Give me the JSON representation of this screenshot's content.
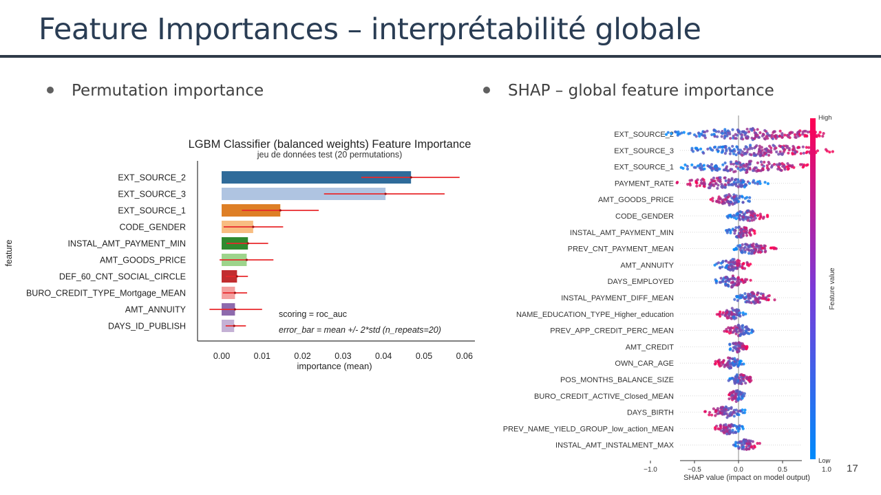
{
  "slide": {
    "title": "Feature Importances – interprétabilité globale",
    "page_number": "17",
    "bullets": [
      "Permutation importance",
      "SHAP – global feature importance"
    ]
  },
  "chart_data": [
    {
      "type": "bar",
      "orientation": "horizontal",
      "title": "LGBM Classifier (balanced weights) Feature Importance",
      "subtitle": "jeu de données test (20 permutations)",
      "xlabel": "importance (mean)",
      "ylabel": "feature",
      "xlim": [
        -0.003,
        0.061
      ],
      "xticks": [
        "0.00",
        "0.01",
        "0.02",
        "0.03",
        "0.04",
        "0.05",
        "0.06"
      ],
      "categories": [
        "EXT_SOURCE_2",
        "EXT_SOURCE_3",
        "EXT_SOURCE_1",
        "CODE_GENDER",
        "INSTAL_AMT_PAYMENT_MIN",
        "AMT_GOODS_PRICE",
        "DEF_60_CNT_SOCIAL_CIRCLE",
        "BURO_CREDIT_TYPE_Mortgage_MEAN",
        "AMT_ANNUITY",
        "DAYS_ID_PUBLISH"
      ],
      "values": [
        0.0468,
        0.0405,
        0.0145,
        0.0078,
        0.0065,
        0.0062,
        0.0038,
        0.0033,
        0.0033,
        0.0031
      ],
      "error_bars": [
        [
          0.0345,
          0.0588
        ],
        [
          0.0253,
          0.0551
        ],
        [
          0.005,
          0.024
        ],
        [
          0.0005,
          0.0152
        ],
        [
          0.0012,
          0.0115
        ],
        [
          -0.0005,
          0.0128
        ],
        [
          0.001,
          0.0065
        ],
        [
          0.0003,
          0.0063
        ],
        [
          -0.003,
          0.01
        ],
        [
          0.001,
          0.006
        ]
      ],
      "colors": [
        "#2f6b9a",
        "#afc4e1",
        "#de7f26",
        "#f8bd82",
        "#2f8a2f",
        "#9dd48b",
        "#c12d2f",
        "#f4a09f",
        "#8e6aad",
        "#c4b1d5"
      ],
      "error_color": "#e8282b",
      "annotations": [
        "scoring = roc_auc",
        "error_bar = mean +/- 2*std (n_repeats=20)"
      ],
      "grid": false
    },
    {
      "type": "scatter",
      "subtype": "shap_beeswarm",
      "xlabel": "SHAP value (impact on model output)",
      "xlim": [
        -1.15,
        1.45
      ],
      "xticks": [
        -1.0,
        -0.5,
        0.0,
        0.5,
        1.0
      ],
      "colorbar": {
        "label": "Feature value",
        "high": "High",
        "low": "Low",
        "high_color": "#ff0052",
        "low_color": "#008bfb"
      },
      "features": [
        {
          "name": "EXT_SOURCE_2",
          "min": -0.9,
          "max": 1.15,
          "bias": "low_right"
        },
        {
          "name": "EXT_SOURCE_3",
          "min": -0.7,
          "max": 1.2,
          "bias": "low_right"
        },
        {
          "name": "EXT_SOURCE_1",
          "min": -0.75,
          "max": 0.92,
          "bias": "low_right"
        },
        {
          "name": "PAYMENT_RATE",
          "min": -0.75,
          "max": 0.38,
          "bias": "high_left"
        },
        {
          "name": "AMT_GOODS_PRICE",
          "min": -0.33,
          "max": 0.15,
          "bias": "high_left"
        },
        {
          "name": "CODE_GENDER",
          "min": -0.15,
          "max": 0.35,
          "bias": "low_right"
        },
        {
          "name": "INSTAL_AMT_PAYMENT_MIN",
          "min": -0.18,
          "max": 0.22,
          "bias": "low_right"
        },
        {
          "name": "PREV_CNT_PAYMENT_MEAN",
          "min": -0.12,
          "max": 0.45,
          "bias": "high_right"
        },
        {
          "name": "AMT_ANNUITY",
          "min": -0.3,
          "max": 0.18,
          "bias": "high_right"
        },
        {
          "name": "DAYS_EMPLOYED",
          "min": -0.3,
          "max": 0.15,
          "bias": "high_right"
        },
        {
          "name": "INSTAL_PAYMENT_DIFF_MEAN",
          "min": -0.1,
          "max": 0.45,
          "bias": "high_right"
        },
        {
          "name": "NAME_EDUCATION_TYPE_Higher_education",
          "min": -0.25,
          "max": 0.1,
          "bias": "high_left"
        },
        {
          "name": "PREV_APP_CREDIT_PERC_MEAN",
          "min": -0.18,
          "max": 0.2,
          "bias": "high_left"
        },
        {
          "name": "AMT_CREDIT",
          "min": -0.15,
          "max": 0.12,
          "bias": "high_right"
        },
        {
          "name": "OWN_CAR_AGE",
          "min": -0.3,
          "max": 0.1,
          "bias": "low_left"
        },
        {
          "name": "POS_MONTHS_BALANCE_SIZE",
          "min": -0.15,
          "max": 0.18,
          "bias": "low_right"
        },
        {
          "name": "BURO_CREDIT_ACTIVE_Closed_MEAN",
          "min": -0.15,
          "max": 0.1,
          "bias": "high_left"
        },
        {
          "name": "DAYS_BIRTH",
          "min": -0.4,
          "max": 0.12,
          "bias": "high_left"
        },
        {
          "name": "PREV_NAME_YIELD_GROUP_low_action_MEAN",
          "min": -0.3,
          "max": 0.08,
          "bias": "high_left"
        },
        {
          "name": "INSTAL_AMT_INSTALMENT_MAX",
          "min": -0.08,
          "max": 0.25,
          "bias": "high_right"
        }
      ]
    }
  ]
}
